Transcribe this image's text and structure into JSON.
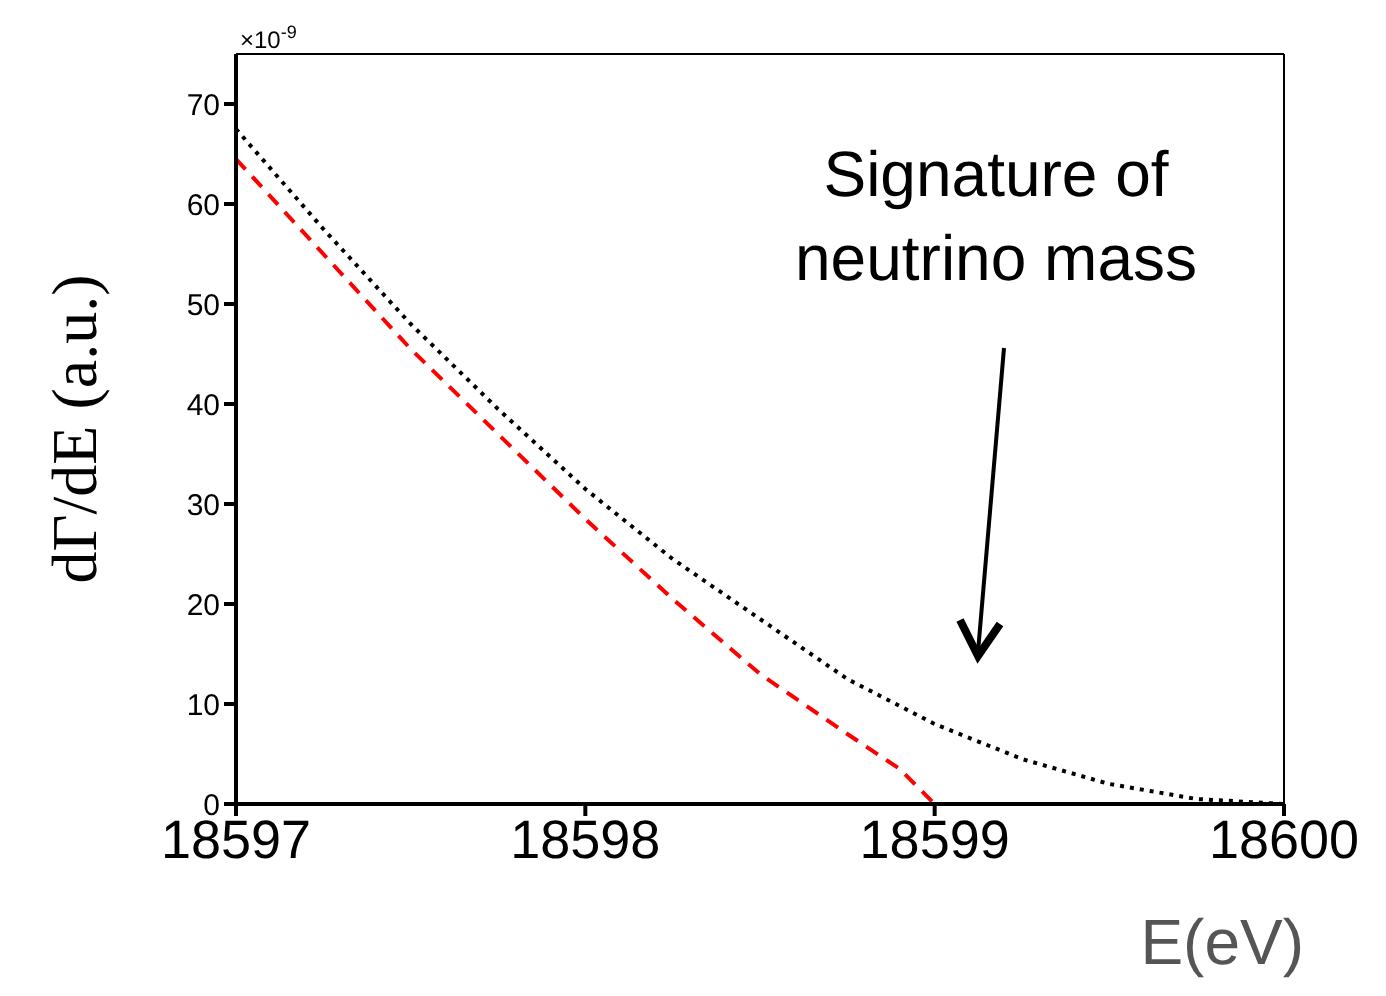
{
  "chart_data": {
    "type": "line",
    "xlabel": "E(eV)",
    "ylabel": "dΓ/dE (a.u.)",
    "annotations": [
      "×10$^{-9}$",
      "Signature of neutrino mass"
    ],
    "series": [
      {
        "color": "#000000",
        "line_style": "dotted",
        "x": [
          18597,
          18597.25,
          18597.5,
          18597.75,
          18598,
          18598.25,
          18598.5,
          18598.75,
          18599,
          18599.25,
          18599.5,
          18599.75,
          18600
        ],
        "values": [
          67.5,
          57.5,
          48,
          39.5,
          31.5,
          24.5,
          18.5,
          12.5,
          8,
          4.5,
          2,
          0.5,
          0
        ]
      },
      {
        "color": "#ff0000",
        "line_style": "dashed",
        "x": [
          18597,
          18597.25,
          18597.5,
          18597.75,
          18598,
          18598.25,
          18598.5,
          18598.75,
          18598.9,
          18599,
          18600
        ],
        "values": [
          64.5,
          55,
          45.5,
          37,
          28.5,
          20.5,
          13,
          7,
          3.5,
          0,
          0
        ]
      }
    ],
    "xlim": [
      18597,
      18600
    ],
    "xticks": [
      18597,
      18598,
      18599,
      18600
    ],
    "ylim": [
      0,
      75
    ],
    "yticks": [
      0,
      10,
      20,
      30,
      40,
      50,
      60,
      70
    ],
    "marker": "none"
  }
}
